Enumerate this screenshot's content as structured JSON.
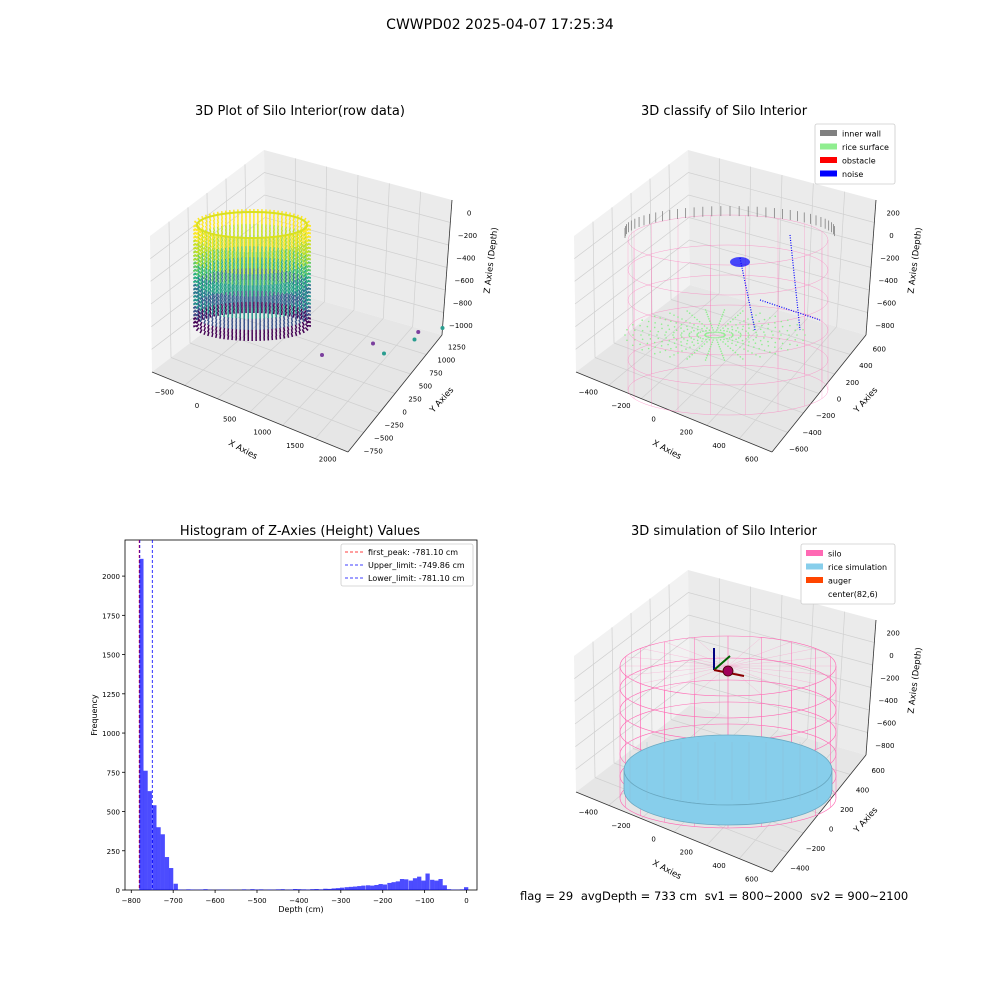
{
  "figure": {
    "suptitle": "CWWPD02 2025-04-07 17:25:34"
  },
  "status_line": {
    "flag": "flag = 29",
    "avg_depth": "avgDepth = 733 cm",
    "sv1": "sv1 = 800~2000",
    "sv2": "sv2 = 900~2100"
  },
  "colors": {
    "inner_wall": "#808080",
    "rice_surface": "#90ee90",
    "obstacle": "#ff0000",
    "noise": "#0000ff",
    "silo": "#ff69b4",
    "rice_simulation": "#87ceeb",
    "auger": "#ff4500",
    "histogram": "#0000ff"
  },
  "chart_data": [
    {
      "type": "scatter",
      "subtype": "3d",
      "title": "3D Plot of Silo Interior(row data)",
      "xlabel": "X Axies",
      "ylabel": "Y Axies",
      "zlabel": "Z Axies (Depth)",
      "xticks": [
        "−500",
        "0",
        "500",
        "1000",
        "1500",
        "2000"
      ],
      "yticks": [
        "−750",
        "−500",
        "−250",
        "0",
        "250",
        "500",
        "750",
        "1000",
        "1250"
      ],
      "zticks": [
        "−1000",
        "−800",
        "−600",
        "−400",
        "−200",
        "0"
      ],
      "colormap": "viridis",
      "outlier_points": [
        {
          "x": 1500,
          "y": 250,
          "z": -800
        },
        {
          "x": 1700,
          "y": 400,
          "z": -850
        },
        {
          "x": 1900,
          "y": 500,
          "z": -900
        },
        {
          "x": 1200,
          "y": -300,
          "z": -1000
        },
        {
          "x": 1600,
          "y": -200,
          "z": -1050
        },
        {
          "x": 1950,
          "y": -100,
          "z": -1100
        }
      ]
    },
    {
      "type": "scatter",
      "subtype": "3d",
      "title": "3D classify of Silo Interior",
      "xlabel": "X Axies",
      "ylabel": "Y Axies",
      "zlabel": "Z Axies (Depth)",
      "xticks": [
        "−400",
        "−200",
        "0",
        "200",
        "400",
        "600"
      ],
      "yticks": [
        "−600",
        "−400",
        "−200",
        "0",
        "200",
        "400",
        "600"
      ],
      "zticks": [
        "−800",
        "−600",
        "−400",
        "−200",
        "0",
        "200"
      ],
      "legend": [
        "inner wall",
        "rice surface",
        "obstacle",
        "noise"
      ],
      "legend_position": "top-right"
    },
    {
      "type": "bar",
      "subtype": "histogram",
      "title": "Histogram of Z-Axies (Height) Values",
      "xlabel": "Depth (cm)",
      "ylabel": "Frequency",
      "xlim": [
        -815,
        25
      ],
      "ylim": [
        0,
        2230
      ],
      "xticks": [
        "−800",
        "−700",
        "−600",
        "−500",
        "−400",
        "−300",
        "−200",
        "−100",
        "0"
      ],
      "yticks": [
        "0",
        "250",
        "500",
        "750",
        "1000",
        "1250",
        "1500",
        "1750",
        "2000"
      ],
      "bin_width": 10.2,
      "bins": [
        {
          "x": -781,
          "y": 2110
        },
        {
          "x": -771,
          "y": 760
        },
        {
          "x": -761,
          "y": 630
        },
        {
          "x": -750,
          "y": 540
        },
        {
          "x": -740,
          "y": 400
        },
        {
          "x": -730,
          "y": 355
        },
        {
          "x": -720,
          "y": 210
        },
        {
          "x": -710,
          "y": 140
        },
        {
          "x": -699,
          "y": 40
        },
        {
          "x": -689,
          "y": 3
        },
        {
          "x": -679,
          "y": 2
        },
        {
          "x": -669,
          "y": 4
        },
        {
          "x": -659,
          "y": 3
        },
        {
          "x": -648,
          "y": 2
        },
        {
          "x": -638,
          "y": 3
        },
        {
          "x": -628,
          "y": 5
        },
        {
          "x": -618,
          "y": 2
        },
        {
          "x": -608,
          "y": 1
        },
        {
          "x": -597,
          "y": 2
        },
        {
          "x": -587,
          "y": 3
        },
        {
          "x": -577,
          "y": 2
        },
        {
          "x": -567,
          "y": 1
        },
        {
          "x": -557,
          "y": 2
        },
        {
          "x": -546,
          "y": 1
        },
        {
          "x": -536,
          "y": 4
        },
        {
          "x": -526,
          "y": 2
        },
        {
          "x": -516,
          "y": 5
        },
        {
          "x": -506,
          "y": 3
        },
        {
          "x": -495,
          "y": 4
        },
        {
          "x": -485,
          "y": 2
        },
        {
          "x": -475,
          "y": 3
        },
        {
          "x": -465,
          "y": 2
        },
        {
          "x": -455,
          "y": 4
        },
        {
          "x": -444,
          "y": 5
        },
        {
          "x": -434,
          "y": 2
        },
        {
          "x": -424,
          "y": 3
        },
        {
          "x": -414,
          "y": 6
        },
        {
          "x": -404,
          "y": 5
        },
        {
          "x": -393,
          "y": 4
        },
        {
          "x": -383,
          "y": 3
        },
        {
          "x": -373,
          "y": 5
        },
        {
          "x": -363,
          "y": 6
        },
        {
          "x": -353,
          "y": 4
        },
        {
          "x": -342,
          "y": 8
        },
        {
          "x": -332,
          "y": 7
        },
        {
          "x": -322,
          "y": 10
        },
        {
          "x": -312,
          "y": 12
        },
        {
          "x": -302,
          "y": 15
        },
        {
          "x": -291,
          "y": 18
        },
        {
          "x": -281,
          "y": 20
        },
        {
          "x": -271,
          "y": 22
        },
        {
          "x": -261,
          "y": 25
        },
        {
          "x": -251,
          "y": 28
        },
        {
          "x": -240,
          "y": 30
        },
        {
          "x": -230,
          "y": 28
        },
        {
          "x": -220,
          "y": 32
        },
        {
          "x": -210,
          "y": 38
        },
        {
          "x": -200,
          "y": 35
        },
        {
          "x": -189,
          "y": 45
        },
        {
          "x": -179,
          "y": 50
        },
        {
          "x": -169,
          "y": 55
        },
        {
          "x": -159,
          "y": 70
        },
        {
          "x": -149,
          "y": 68
        },
        {
          "x": -138,
          "y": 60
        },
        {
          "x": -128,
          "y": 75
        },
        {
          "x": -118,
          "y": 85
        },
        {
          "x": -108,
          "y": 60
        },
        {
          "x": -98,
          "y": 105
        },
        {
          "x": -87,
          "y": 65
        },
        {
          "x": -77,
          "y": 60
        },
        {
          "x": -67,
          "y": 70
        },
        {
          "x": -57,
          "y": 30
        },
        {
          "x": -47,
          "y": 5
        },
        {
          "x": -36,
          "y": 3
        },
        {
          "x": -26,
          "y": 2
        },
        {
          "x": -16,
          "y": 4
        },
        {
          "x": -6,
          "y": 18
        }
      ],
      "lines": [
        {
          "label": "first_peak: -781.10 cm",
          "x": -781.1,
          "color": "#ff0000",
          "style": "dashed"
        },
        {
          "label": "Upper_limit: -749.86 cm",
          "x": -749.86,
          "color": "#0000ff",
          "style": "dashed"
        },
        {
          "label": "Lower_limit: -781.10 cm",
          "x": -781.1,
          "color": "#0000ff",
          "style": "dashed"
        }
      ],
      "legend_position": "top-right"
    },
    {
      "type": "scatter",
      "subtype": "3d",
      "title": "3D simulation of Silo Interior",
      "xlabel": "X Axies",
      "ylabel": "Y Axies",
      "zlabel": "Z Axies (Depth)",
      "xticks": [
        "−400",
        "−200",
        "0",
        "200",
        "400",
        "600"
      ],
      "yticks": [
        "−400",
        "−200",
        "0",
        "200",
        "400",
        "600"
      ],
      "zticks": [
        "−800",
        "−600",
        "−400",
        "−200",
        "0",
        "200"
      ],
      "legend": [
        "silo",
        "rice simulation",
        "auger",
        "center(82,6)"
      ],
      "legend_position": "top-right"
    }
  ]
}
